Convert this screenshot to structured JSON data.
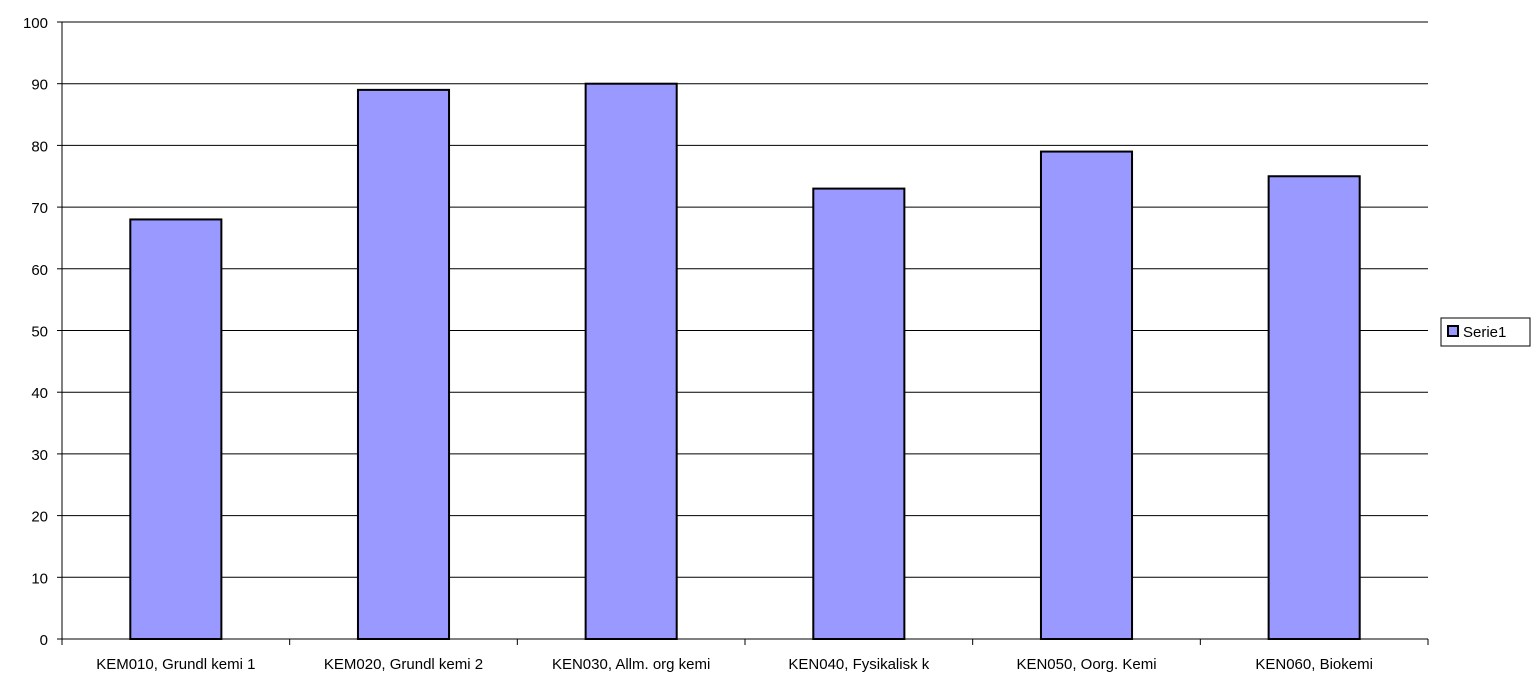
{
  "chart_data": {
    "type": "bar",
    "categories": [
      "KEM010, Grundl kemi 1",
      "KEM020, Grundl kemi 2",
      "KEN030, Allm. org kemi",
      "KEN040, Fysikalisk k",
      "KEN050, Oorg. Kemi",
      "KEN060, Biokemi"
    ],
    "series": [
      {
        "name": "Serie1",
        "values": [
          68,
          89,
          90,
          73,
          79,
          75
        ]
      }
    ],
    "title": "",
    "xlabel": "",
    "ylabel": "",
    "ylim": [
      0,
      100
    ],
    "yticks": [
      "0",
      "10",
      "20",
      "30",
      "40",
      "50",
      "60",
      "70",
      "80",
      "90",
      "100"
    ],
    "grid": true,
    "legend_position": "right",
    "colors": {
      "bar_fill": "#9999ff",
      "bar_stroke": "#000000",
      "grid": "#000000"
    }
  }
}
